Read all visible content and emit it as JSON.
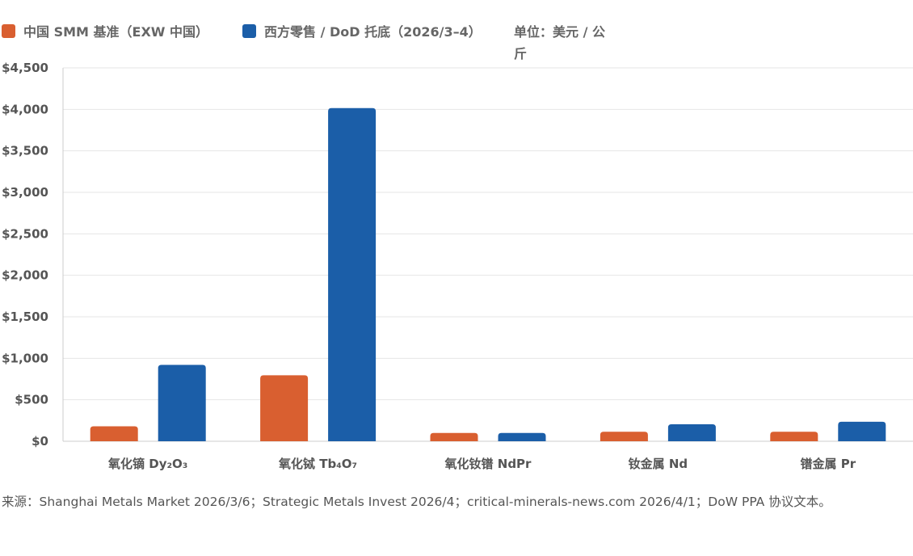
{
  "chart_data": {
    "type": "bar",
    "categories": [
      "氧化镝 Dy₂O₃",
      "氧化铽 Tb₄O₇",
      "氧化钕镨 NdPr",
      "钕金属 Nd",
      "镨金属 Pr"
    ],
    "series": [
      {
        "name": "中国 SMM 基准（EXW 中国）",
        "color": "#d95f30",
        "values": [
          180,
          795,
          100,
          115,
          115
        ]
      },
      {
        "name": "西方零售 / DoD 托底（2026/3–4）",
        "color": "#1b5ea8",
        "values": [
          920,
          4015,
          100,
          205,
          235
        ]
      }
    ],
    "ylim": [
      0,
      4500
    ],
    "yticks": [
      0,
      500,
      1000,
      1500,
      2000,
      2500,
      3000,
      3500,
      4000,
      4500
    ],
    "ytick_labels": [
      "$0",
      "$500",
      "$1,000",
      "$1,500",
      "$2,000",
      "$2,500",
      "$3,000",
      "$3,500",
      "$4,000",
      "$4,500"
    ],
    "unit_label_line1": "单位：美元 / 公",
    "unit_label_line2": "斤",
    "grid": true,
    "legend_position": "top-left"
  },
  "source_note": "来源：Shanghai Metals Market 2026/3/6；Strategic Metals Invest 2026/4；critical-minerals-news.com 2026/4/1；DoW PPA 协议文本。"
}
